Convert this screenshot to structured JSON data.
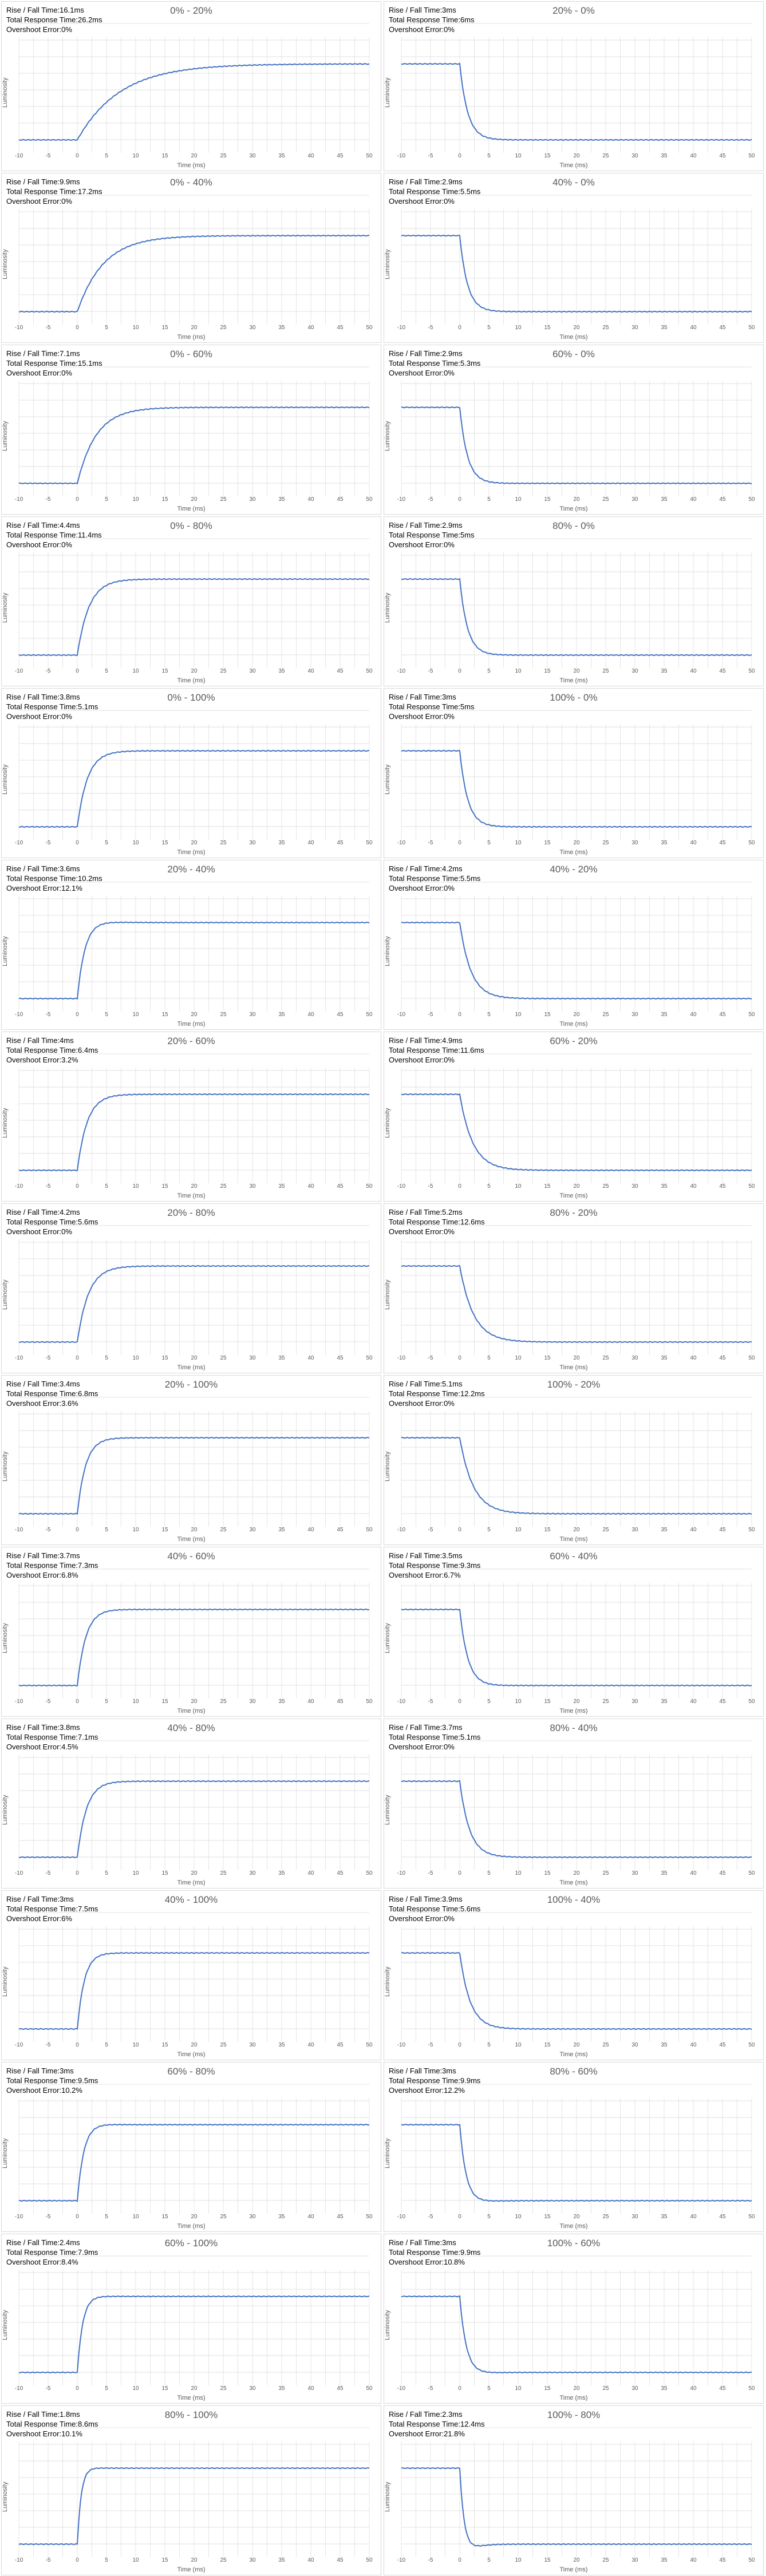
{
  "labels": {
    "rise_fall": "Rise / Fall Time:",
    "total": "Total Response Time:",
    "overshoot": "Overshoot Error:",
    "xlabel": "Time (ms)",
    "ylabel": "Luminosity"
  },
  "colors": {
    "line": "#4472c4",
    "grid": "#d9d9d9",
    "tick": "#595959"
  },
  "chart_data": [
    {
      "type": "line",
      "title": "0% - 20%",
      "xlabel": "Time (ms)",
      "ylabel": "Luminosity",
      "xlim": [
        -10,
        50
      ],
      "x_ticks": [
        -10,
        -5,
        0,
        5,
        10,
        15,
        20,
        25,
        30,
        35,
        40,
        45,
        50
      ],
      "grid": true,
      "from": 0,
      "to": 20,
      "rise_fall": "16.1ms",
      "total": "26.2ms",
      "overshoot": "0%",
      "stats": {
        "rise_fall": "16.1ms",
        "total": "26.2ms",
        "overshoot": "0%"
      }
    },
    {
      "type": "line",
      "title": "20% - 0%",
      "xlabel": "Time (ms)",
      "ylabel": "Luminosity",
      "xlim": [
        -10,
        50
      ],
      "x_ticks": [
        -10,
        -5,
        0,
        5,
        10,
        15,
        20,
        25,
        30,
        35,
        40,
        45,
        50
      ],
      "grid": true,
      "from": 20,
      "to": 0,
      "stats": {
        "rise_fall": "3ms",
        "total": "6ms",
        "overshoot": "0%"
      }
    },
    {
      "type": "line",
      "title": "0% - 40%",
      "xlabel": "Time (ms)",
      "ylabel": "Luminosity",
      "xlim": [
        -10,
        50
      ],
      "x_ticks": [
        -10,
        -5,
        0,
        5,
        10,
        15,
        20,
        25,
        30,
        35,
        40,
        45,
        50
      ],
      "grid": true,
      "from": 0,
      "to": 40,
      "stats": {
        "rise_fall": "9.9ms",
        "total": "17.2ms",
        "overshoot": "0%"
      }
    },
    {
      "type": "line",
      "title": "40% - 0%",
      "xlabel": "Time (ms)",
      "ylabel": "Luminosity",
      "xlim": [
        -10,
        50
      ],
      "x_ticks": [
        -10,
        -5,
        0,
        5,
        10,
        15,
        20,
        25,
        30,
        35,
        40,
        45,
        50
      ],
      "grid": true,
      "from": 40,
      "to": 0,
      "stats": {
        "rise_fall": "2.9ms",
        "total": "5.5ms",
        "overshoot": "0%"
      }
    },
    {
      "type": "line",
      "title": "0% - 60%",
      "xlabel": "Time (ms)",
      "ylabel": "Luminosity",
      "xlim": [
        -10,
        50
      ],
      "x_ticks": [
        -10,
        -5,
        0,
        5,
        10,
        15,
        20,
        25,
        30,
        35,
        40,
        45,
        50
      ],
      "grid": true,
      "from": 0,
      "to": 60,
      "stats": {
        "rise_fall": "7.1ms",
        "total": "15.1ms",
        "overshoot": "0%"
      }
    },
    {
      "type": "line",
      "title": "60% - 0%",
      "xlabel": "Time (ms)",
      "ylabel": "Luminosity",
      "xlim": [
        -10,
        50
      ],
      "x_ticks": [
        -10,
        -5,
        0,
        5,
        10,
        15,
        20,
        25,
        30,
        35,
        40,
        45,
        50
      ],
      "grid": true,
      "from": 60,
      "to": 0,
      "stats": {
        "rise_fall": "2.9ms",
        "total": "5.3ms",
        "overshoot": "0%"
      }
    },
    {
      "type": "line",
      "title": "0% - 80%",
      "xlabel": "Time (ms)",
      "ylabel": "Luminosity",
      "xlim": [
        -10,
        50
      ],
      "x_ticks": [
        -10,
        -5,
        0,
        5,
        10,
        15,
        20,
        25,
        30,
        35,
        40,
        45,
        50
      ],
      "grid": true,
      "from": 0,
      "to": 80,
      "stats": {
        "rise_fall": "4.4ms",
        "total": "11.4ms",
        "overshoot": "0%"
      }
    },
    {
      "type": "line",
      "title": "80% - 0%",
      "xlabel": "Time (ms)",
      "ylabel": "Luminosity",
      "xlim": [
        -10,
        50
      ],
      "x_ticks": [
        -10,
        -5,
        0,
        5,
        10,
        15,
        20,
        25,
        30,
        35,
        40,
        45,
        50
      ],
      "grid": true,
      "from": 80,
      "to": 0,
      "stats": {
        "rise_fall": "2.9ms",
        "total": "5ms",
        "overshoot": "0%"
      }
    },
    {
      "type": "line",
      "title": "0% - 100%",
      "xlabel": "Time (ms)",
      "ylabel": "Luminosity",
      "xlim": [
        -10,
        50
      ],
      "x_ticks": [
        -10,
        -5,
        0,
        5,
        10,
        15,
        20,
        25,
        30,
        35,
        40,
        45,
        50
      ],
      "grid": true,
      "from": 0,
      "to": 100,
      "stats": {
        "rise_fall": "3.8ms",
        "total": "5.1ms",
        "overshoot": "0%"
      }
    },
    {
      "type": "line",
      "title": "100% - 0%",
      "xlabel": "Time (ms)",
      "ylabel": "Luminosity",
      "xlim": [
        -10,
        50
      ],
      "x_ticks": [
        -10,
        -5,
        0,
        5,
        10,
        15,
        20,
        25,
        30,
        35,
        40,
        45,
        50
      ],
      "grid": true,
      "from": 100,
      "to": 0,
      "stats": {
        "rise_fall": "3ms",
        "total": "5ms",
        "overshoot": "0%"
      }
    },
    {
      "type": "line",
      "title": "20% - 40%",
      "xlabel": "Time (ms)",
      "ylabel": "Luminosity",
      "xlim": [
        -10,
        50
      ],
      "x_ticks": [
        -10,
        -5,
        0,
        5,
        10,
        15,
        20,
        25,
        30,
        35,
        40,
        45,
        50
      ],
      "grid": true,
      "from": 20,
      "to": 40,
      "stats": {
        "rise_fall": "3.6ms",
        "total": "10.2ms",
        "overshoot": "12.1%"
      }
    },
    {
      "type": "line",
      "title": "40% - 20%",
      "xlabel": "Time (ms)",
      "ylabel": "Luminosity",
      "xlim": [
        -10,
        50
      ],
      "x_ticks": [
        -10,
        -5,
        0,
        5,
        10,
        15,
        20,
        25,
        30,
        35,
        40,
        45,
        50
      ],
      "grid": true,
      "from": 40,
      "to": 20,
      "stats": {
        "rise_fall": "4.2ms",
        "total": "5.5ms",
        "overshoot": "0%"
      }
    },
    {
      "type": "line",
      "title": "20% - 60%",
      "xlabel": "Time (ms)",
      "ylabel": "Luminosity",
      "xlim": [
        -10,
        50
      ],
      "x_ticks": [
        -10,
        -5,
        0,
        5,
        10,
        15,
        20,
        25,
        30,
        35,
        40,
        45,
        50
      ],
      "grid": true,
      "from": 20,
      "to": 60,
      "stats": {
        "rise_fall": "4ms",
        "total": "6.4ms",
        "overshoot": "3.2%"
      }
    },
    {
      "type": "line",
      "title": "60% - 20%",
      "xlabel": "Time (ms)",
      "ylabel": "Luminosity",
      "xlim": [
        -10,
        50
      ],
      "x_ticks": [
        -10,
        -5,
        0,
        5,
        10,
        15,
        20,
        25,
        30,
        35,
        40,
        45,
        50
      ],
      "grid": true,
      "from": 60,
      "to": 20,
      "stats": {
        "rise_fall": "4.9ms",
        "total": "11.6ms",
        "overshoot": "0%"
      }
    },
    {
      "type": "line",
      "title": "20% - 80%",
      "xlabel": "Time (ms)",
      "ylabel": "Luminosity",
      "xlim": [
        -10,
        50
      ],
      "x_ticks": [
        -10,
        -5,
        0,
        5,
        10,
        15,
        20,
        25,
        30,
        35,
        40,
        45,
        50
      ],
      "grid": true,
      "from": 20,
      "to": 80,
      "stats": {
        "rise_fall": "4.2ms",
        "total": "5.6ms",
        "overshoot": "0%"
      }
    },
    {
      "type": "line",
      "title": "80% - 20%",
      "xlabel": "Time (ms)",
      "ylabel": "Luminosity",
      "xlim": [
        -10,
        50
      ],
      "x_ticks": [
        -10,
        -5,
        0,
        5,
        10,
        15,
        20,
        25,
        30,
        35,
        40,
        45,
        50
      ],
      "grid": true,
      "from": 80,
      "to": 20,
      "stats": {
        "rise_fall": "5.2ms",
        "total": "12.6ms",
        "overshoot": "0%"
      }
    },
    {
      "type": "line",
      "title": "20% - 100%",
      "xlabel": "Time (ms)",
      "ylabel": "Luminosity",
      "xlim": [
        -10,
        50
      ],
      "x_ticks": [
        -10,
        -5,
        0,
        5,
        10,
        15,
        20,
        25,
        30,
        35,
        40,
        45,
        50
      ],
      "grid": true,
      "from": 20,
      "to": 100,
      "stats": {
        "rise_fall": "3.4ms",
        "total": "6.8ms",
        "overshoot": "3.6%"
      }
    },
    {
      "type": "line",
      "title": "100% - 20%",
      "xlabel": "Time (ms)",
      "ylabel": "Luminosity",
      "xlim": [
        -10,
        50
      ],
      "x_ticks": [
        -10,
        -5,
        0,
        5,
        10,
        15,
        20,
        25,
        30,
        35,
        40,
        45,
        50
      ],
      "grid": true,
      "from": 100,
      "to": 20,
      "stats": {
        "rise_fall": "5.1ms",
        "total": "12.2ms",
        "overshoot": "0%"
      }
    },
    {
      "type": "line",
      "title": "40% - 60%",
      "xlabel": "Time (ms)",
      "ylabel": "Luminosity",
      "xlim": [
        -10,
        50
      ],
      "x_ticks": [
        -10,
        -5,
        0,
        5,
        10,
        15,
        20,
        25,
        30,
        35,
        40,
        45,
        50
      ],
      "grid": true,
      "from": 40,
      "to": 60,
      "stats": {
        "rise_fall": "3.7ms",
        "total": "7.3ms",
        "overshoot": "6.8%"
      }
    },
    {
      "type": "line",
      "title": "60% - 40%",
      "xlabel": "Time (ms)",
      "ylabel": "Luminosity",
      "xlim": [
        -10,
        50
      ],
      "x_ticks": [
        -10,
        -5,
        0,
        5,
        10,
        15,
        20,
        25,
        30,
        35,
        40,
        45,
        50
      ],
      "grid": true,
      "from": 60,
      "to": 40,
      "stats": {
        "rise_fall": "3.5ms",
        "total": "9.3ms",
        "overshoot": "6.7%"
      }
    },
    {
      "type": "line",
      "title": "40% - 80%",
      "xlabel": "Time (ms)",
      "ylabel": "Luminosity",
      "xlim": [
        -10,
        50
      ],
      "x_ticks": [
        -10,
        -5,
        0,
        5,
        10,
        15,
        20,
        25,
        30,
        35,
        40,
        45,
        50
      ],
      "grid": true,
      "from": 40,
      "to": 80,
      "stats": {
        "rise_fall": "3.8ms",
        "total": "7.1ms",
        "overshoot": "4.5%"
      }
    },
    {
      "type": "line",
      "title": "80% - 40%",
      "xlabel": "Time (ms)",
      "ylabel": "Luminosity",
      "xlim": [
        -10,
        50
      ],
      "x_ticks": [
        -10,
        -5,
        0,
        5,
        10,
        15,
        20,
        25,
        30,
        35,
        40,
        45,
        50
      ],
      "grid": true,
      "from": 80,
      "to": 40,
      "stats": {
        "rise_fall": "3.7ms",
        "total": "5.1ms",
        "overshoot": "0%"
      }
    },
    {
      "type": "line",
      "title": "40% - 100%",
      "xlabel": "Time (ms)",
      "ylabel": "Luminosity",
      "xlim": [
        -10,
        50
      ],
      "x_ticks": [
        -10,
        -5,
        0,
        5,
        10,
        15,
        20,
        25,
        30,
        35,
        40,
        45,
        50
      ],
      "grid": true,
      "from": 40,
      "to": 100,
      "stats": {
        "rise_fall": "3ms",
        "total": "7.5ms",
        "overshoot": "6%"
      }
    },
    {
      "type": "line",
      "title": "100% - 40%",
      "xlabel": "Time (ms)",
      "ylabel": "Luminosity",
      "xlim": [
        -10,
        50
      ],
      "x_ticks": [
        -10,
        -5,
        0,
        5,
        10,
        15,
        20,
        25,
        30,
        35,
        40,
        45,
        50
      ],
      "grid": true,
      "from": 100,
      "to": 40,
      "stats": {
        "rise_fall": "3.9ms",
        "total": "5.6ms",
        "overshoot": "0%"
      }
    },
    {
      "type": "line",
      "title": "60% - 80%",
      "xlabel": "Time (ms)",
      "ylabel": "Luminosity",
      "xlim": [
        -10,
        50
      ],
      "x_ticks": [
        -10,
        -5,
        0,
        5,
        10,
        15,
        20,
        25,
        30,
        35,
        40,
        45,
        50
      ],
      "grid": true,
      "from": 60,
      "to": 80,
      "stats": {
        "rise_fall": "3ms",
        "total": "9.5ms",
        "overshoot": "10.2%"
      }
    },
    {
      "type": "line",
      "title": "80% - 60%",
      "xlabel": "Time (ms)",
      "ylabel": "Luminosity",
      "xlim": [
        -10,
        50
      ],
      "x_ticks": [
        -10,
        -5,
        0,
        5,
        10,
        15,
        20,
        25,
        30,
        35,
        40,
        45,
        50
      ],
      "grid": true,
      "from": 80,
      "to": 60,
      "stats": {
        "rise_fall": "3ms",
        "total": "9.9ms",
        "overshoot": "12.2%"
      }
    },
    {
      "type": "line",
      "title": "60% - 100%",
      "xlabel": "Time (ms)",
      "ylabel": "Luminosity",
      "xlim": [
        -10,
        50
      ],
      "x_ticks": [
        -10,
        -5,
        0,
        5,
        10,
        15,
        20,
        25,
        30,
        35,
        40,
        45,
        50
      ],
      "grid": true,
      "from": 60,
      "to": 100,
      "stats": {
        "rise_fall": "2.4ms",
        "total": "7.9ms",
        "overshoot": "8.4%"
      }
    },
    {
      "type": "line",
      "title": "100% - 60%",
      "xlabel": "Time (ms)",
      "ylabel": "Luminosity",
      "xlim": [
        -10,
        50
      ],
      "x_ticks": [
        -10,
        -5,
        0,
        5,
        10,
        15,
        20,
        25,
        30,
        35,
        40,
        45,
        50
      ],
      "grid": true,
      "from": 100,
      "to": 60,
      "stats": {
        "rise_fall": "3ms",
        "total": "9.9ms",
        "overshoot": "10.8%"
      }
    },
    {
      "type": "line",
      "title": "80% - 100%",
      "xlabel": "Time (ms)",
      "ylabel": "Luminosity",
      "xlim": [
        -10,
        50
      ],
      "x_ticks": [
        -10,
        -5,
        0,
        5,
        10,
        15,
        20,
        25,
        30,
        35,
        40,
        45,
        50
      ],
      "grid": true,
      "from": 80,
      "to": 100,
      "stats": {
        "rise_fall": "1.8ms",
        "total": "8.6ms",
        "overshoot": "10.1%"
      }
    },
    {
      "type": "line",
      "title": "100% - 80%",
      "xlabel": "Time (ms)",
      "ylabel": "Luminosity",
      "xlim": [
        -10,
        50
      ],
      "x_ticks": [
        -10,
        -5,
        0,
        5,
        10,
        15,
        20,
        25,
        30,
        35,
        40,
        45,
        50
      ],
      "grid": true,
      "from": 100,
      "to": 80,
      "stats": {
        "rise_fall": "2.3ms",
        "total": "12.4ms",
        "overshoot": "21.8%"
      }
    }
  ]
}
